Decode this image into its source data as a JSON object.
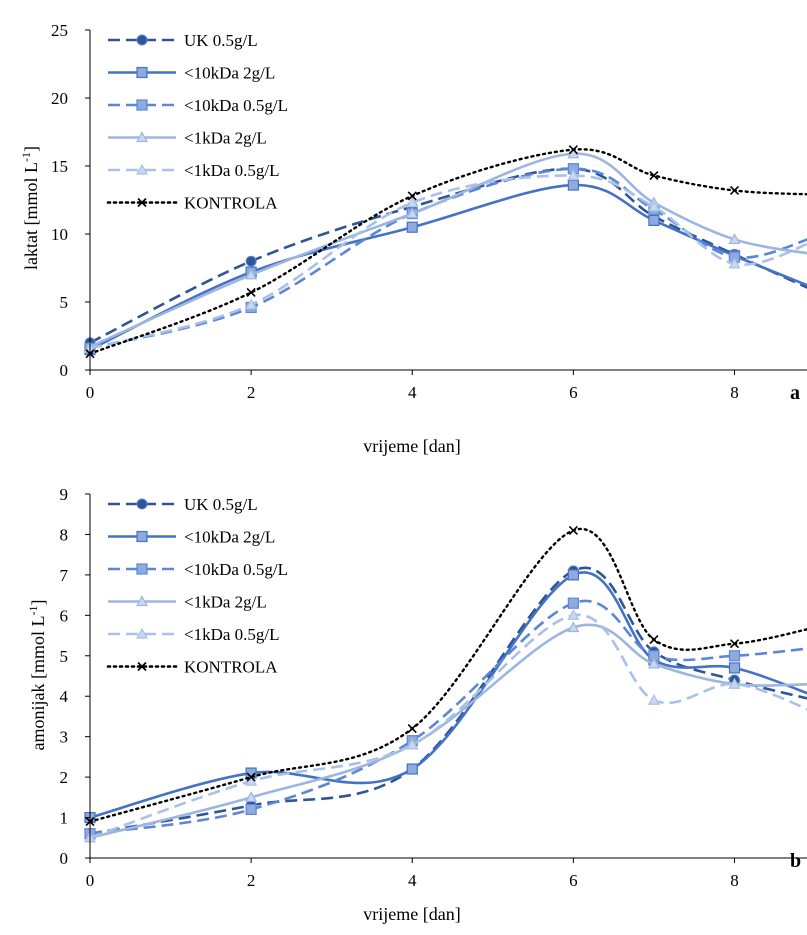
{
  "chart_data": [
    {
      "type": "line",
      "panel_label": "a",
      "xlabel": "vrijeme [dan]",
      "ylabel": "laktat [mmol L",
      "ylabel_sup": "-1",
      "ylabel_close": "]",
      "xlim": [
        0,
        9
      ],
      "ylim": [
        0,
        25
      ],
      "xticks": [
        0,
        2,
        4,
        6,
        8
      ],
      "yticks": [
        0,
        5,
        10,
        15,
        20,
        25
      ],
      "legend_position": "top-left",
      "series": [
        {
          "name": "UK 0.5g/L",
          "x": [
            0,
            2,
            4,
            6,
            7,
            8,
            9
          ],
          "y": [
            2.0,
            8.0,
            12.0,
            14.8,
            11.3,
            8.5,
            5.8
          ]
        },
        {
          "name": "<10kDa 2g/L",
          "x": [
            0,
            2,
            4,
            6,
            7,
            8,
            9
          ],
          "y": [
            1.5,
            7.2,
            10.5,
            13.6,
            11.0,
            8.4,
            6.0
          ]
        },
        {
          "name": "<10kDa 0.5g/L",
          "x": [
            0,
            2,
            4,
            6,
            7,
            8,
            9
          ],
          "y": [
            1.6,
            4.6,
            11.5,
            14.8,
            11.8,
            8.3,
            9.8
          ]
        },
        {
          "name": "<1kDa 2g/L",
          "x": [
            0,
            2,
            4,
            6,
            7,
            8,
            9
          ],
          "y": [
            1.7,
            7.0,
            11.5,
            15.9,
            12.3,
            9.6,
            8.5
          ]
        },
        {
          "name": "<1kDa 0.5g/L",
          "x": [
            0,
            2,
            4,
            6,
            7,
            8,
            9
          ],
          "y": [
            1.6,
            4.8,
            12.3,
            14.3,
            12.0,
            7.8,
            9.5
          ]
        },
        {
          "name": "KONTROLA",
          "x": [
            0,
            2,
            4,
            6,
            7,
            8,
            9
          ],
          "y": [
            1.2,
            5.7,
            12.8,
            16.2,
            14.3,
            13.2,
            12.9
          ]
        }
      ]
    },
    {
      "type": "line",
      "panel_label": "b",
      "xlabel": "vrijeme [dan]",
      "ylabel": "amonijak  [mmol L",
      "ylabel_sup": "-1",
      "ylabel_close": "]",
      "xlim": [
        0,
        9
      ],
      "ylim": [
        0,
        9
      ],
      "xticks": [
        0,
        2,
        4,
        6,
        8
      ],
      "yticks": [
        0,
        1,
        2,
        3,
        4,
        5,
        6,
        7,
        8,
        9
      ],
      "legend_position": "top-left",
      "series": [
        {
          "name": "UK 0.5g/L",
          "x": [
            0,
            2,
            4,
            6,
            7,
            8,
            9
          ],
          "y": [
            0.6,
            1.3,
            2.2,
            7.1,
            5.1,
            4.4,
            3.9
          ]
        },
        {
          "name": "<10kDa 2g/L",
          "x": [
            0,
            2,
            4,
            6,
            7,
            8,
            9
          ],
          "y": [
            1.0,
            2.1,
            2.2,
            7.0,
            4.9,
            4.7,
            4.0
          ]
        },
        {
          "name": "<10kDa 0.5g/L",
          "x": [
            0,
            2,
            4,
            6,
            7,
            8,
            9
          ],
          "y": [
            0.6,
            1.2,
            2.9,
            6.3,
            5.0,
            5.0,
            5.2
          ]
        },
        {
          "name": "<1kDa 2g/L",
          "x": [
            0,
            2,
            4,
            6,
            7,
            8,
            9
          ],
          "y": [
            0.5,
            1.5,
            2.8,
            5.7,
            4.8,
            4.3,
            4.3
          ]
        },
        {
          "name": "<1kDa 0.5g/L",
          "x": [
            0,
            2,
            4,
            6,
            7,
            8,
            9
          ],
          "y": [
            0.5,
            1.9,
            2.8,
            6.0,
            3.9,
            4.3,
            3.6
          ]
        },
        {
          "name": "KONTROLA",
          "x": [
            0,
            2,
            4,
            6,
            7,
            8,
            9
          ],
          "y": [
            0.9,
            2.0,
            3.2,
            8.1,
            5.4,
            5.3,
            5.7
          ]
        }
      ]
    }
  ],
  "series_style": [
    {
      "color": "#2F5597",
      "dash": "dash",
      "marker": "circle"
    },
    {
      "color": "#4472C4",
      "dash": "solid",
      "marker": "square"
    },
    {
      "color": "#5B87D6",
      "dash": "dash",
      "marker": "square"
    },
    {
      "color": "#9DB6E0",
      "dash": "solid",
      "marker": "triangle"
    },
    {
      "color": "#A9C1E8",
      "dash": "dash",
      "marker": "triangle"
    },
    {
      "color": "#000000",
      "dash": "dot",
      "marker": "x"
    }
  ]
}
